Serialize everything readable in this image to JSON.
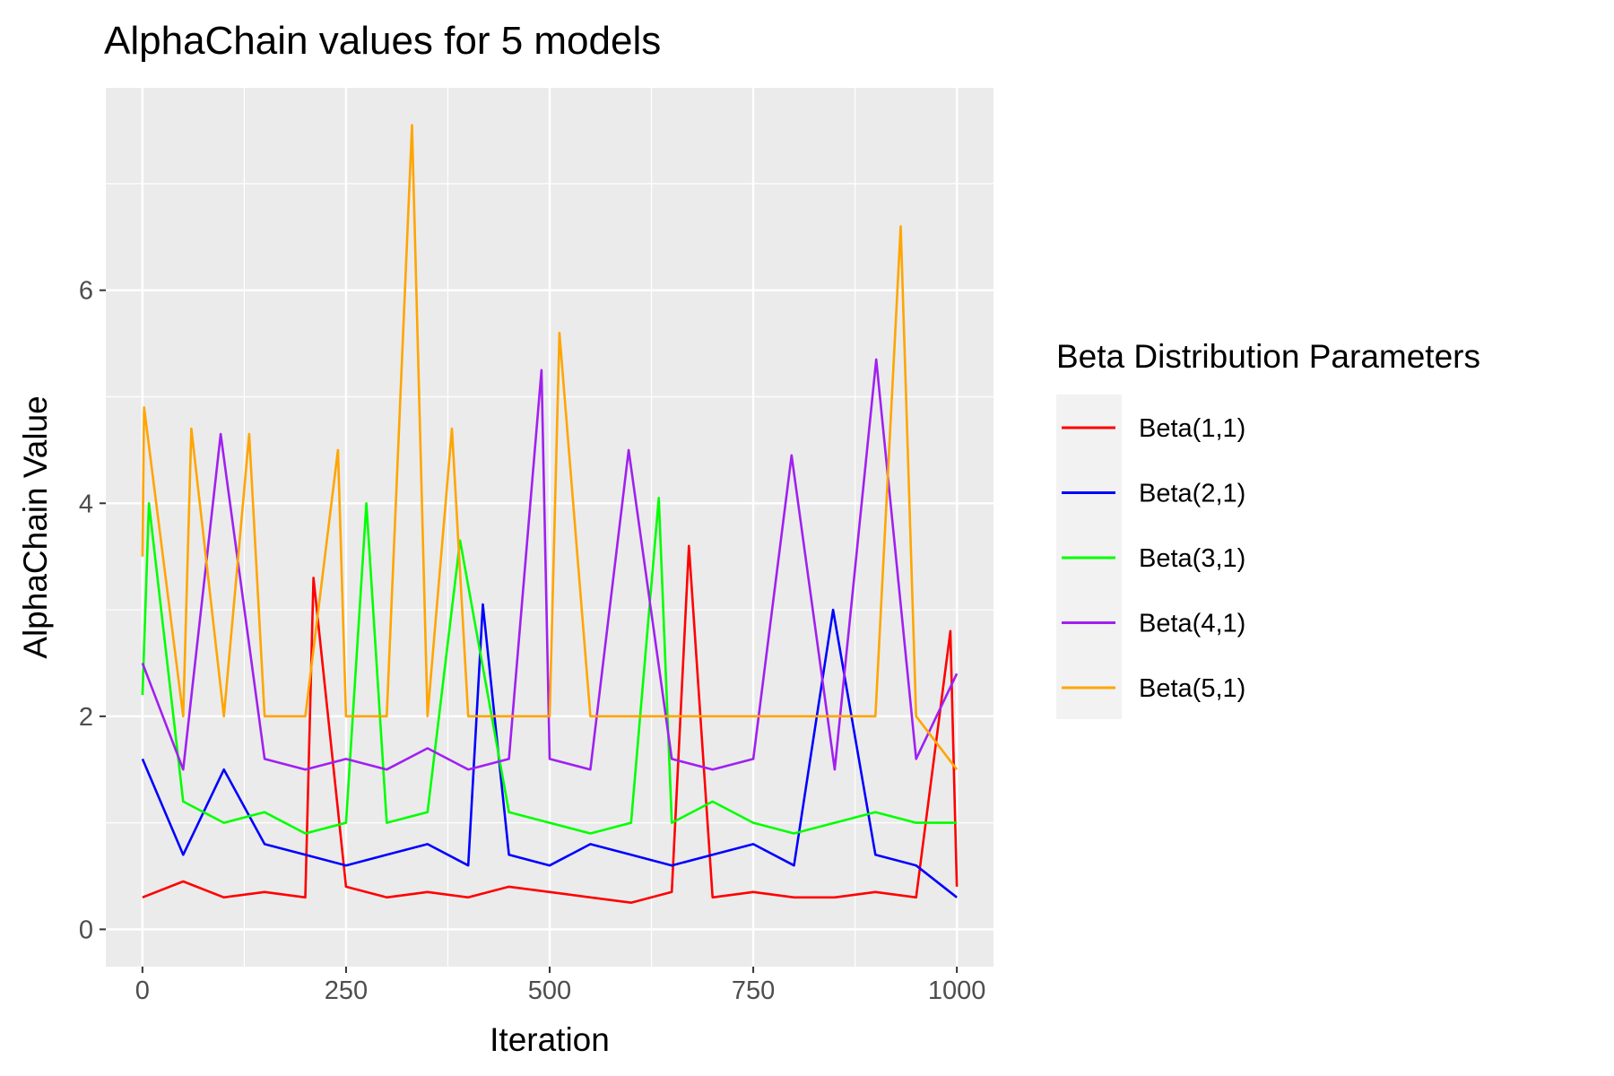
{
  "chart_data": {
    "type": "line",
    "title": "AlphaChain values for 5 models",
    "xlabel": "Iteration",
    "ylabel": "AlphaChain Value",
    "xlim": [
      -45,
      1045
    ],
    "ylim": [
      -0.35,
      7.9
    ],
    "x_ticks": [
      0,
      250,
      500,
      750,
      1000
    ],
    "x_tick_labels": [
      "0",
      "250",
      "500",
      "750",
      "1000"
    ],
    "y_ticks": [
      0,
      2,
      4,
      6
    ],
    "y_tick_labels": [
      "0",
      "2",
      "4",
      "6"
    ],
    "grid": true,
    "legend": {
      "title": "Beta Distribution Parameters",
      "position": "right"
    },
    "series": [
      {
        "name": "Beta(1,1)",
        "color": "#ff0000",
        "x": [
          0,
          50,
          100,
          150,
          200,
          210,
          250,
          300,
          350,
          400,
          450,
          500,
          550,
          600,
          650,
          671,
          700,
          750,
          800,
          850,
          900,
          950,
          992,
          1000
        ],
        "y": [
          0.3,
          0.45,
          0.3,
          0.35,
          0.3,
          3.3,
          0.4,
          0.3,
          0.35,
          0.3,
          0.4,
          0.35,
          0.3,
          0.25,
          0.35,
          3.6,
          0.3,
          0.35,
          0.3,
          0.3,
          0.35,
          0.3,
          2.8,
          0.4
        ]
      },
      {
        "name": "Beta(2,1)",
        "color": "#0000ff",
        "x": [
          0,
          50,
          100,
          150,
          200,
          250,
          300,
          350,
          400,
          418,
          450,
          500,
          550,
          600,
          650,
          700,
          750,
          800,
          848,
          900,
          950,
          1000
        ],
        "y": [
          1.6,
          0.7,
          1.5,
          0.8,
          0.7,
          0.6,
          0.7,
          0.8,
          0.6,
          3.05,
          0.7,
          0.6,
          0.8,
          0.7,
          0.6,
          0.7,
          0.8,
          0.6,
          3.0,
          0.7,
          0.6,
          0.3
        ]
      },
      {
        "name": "Beta(3,1)",
        "color": "#00ff00",
        "x": [
          0,
          8,
          50,
          100,
          150,
          200,
          250,
          275,
          300,
          350,
          390,
          450,
          500,
          550,
          600,
          634,
          650,
          700,
          750,
          800,
          850,
          900,
          950,
          1000
        ],
        "y": [
          2.2,
          4.0,
          1.2,
          1.0,
          1.1,
          0.9,
          1.0,
          4.0,
          1.0,
          1.1,
          3.65,
          1.1,
          1.0,
          0.9,
          1.0,
          4.05,
          1.0,
          1.2,
          1.0,
          0.9,
          1.0,
          1.1,
          1.0,
          1.0
        ]
      },
      {
        "name": "Beta(4,1)",
        "color": "#a020f0",
        "x": [
          0,
          50,
          96,
          150,
          200,
          250,
          300,
          350,
          400,
          450,
          490,
          500,
          550,
          597,
          650,
          700,
          750,
          797,
          850,
          901,
          950,
          1000
        ],
        "y": [
          2.5,
          1.5,
          4.65,
          1.6,
          1.5,
          1.6,
          1.5,
          1.7,
          1.5,
          1.6,
          5.25,
          1.6,
          1.5,
          4.5,
          1.6,
          1.5,
          1.6,
          4.45,
          1.5,
          5.35,
          1.6,
          2.4
        ]
      },
      {
        "name": "Beta(5,1)",
        "color": "#ffa500",
        "x": [
          0,
          2,
          50,
          60,
          100,
          131,
          150,
          200,
          240,
          250,
          300,
          331,
          350,
          380,
          400,
          450,
          500,
          512,
          550,
          600,
          650,
          700,
          750,
          800,
          850,
          900,
          931,
          950,
          1000
        ],
        "y": [
          3.5,
          4.9,
          2.0,
          4.7,
          2.0,
          4.65,
          2.0,
          2.0,
          4.5,
          2.0,
          2.0,
          7.55,
          2.0,
          4.7,
          2.0,
          2.0,
          2.0,
          5.6,
          2.0,
          2.0,
          2.0,
          2.0,
          2.0,
          2.0,
          2.0,
          2.0,
          6.6,
          2.0,
          1.5
        ]
      }
    ]
  }
}
